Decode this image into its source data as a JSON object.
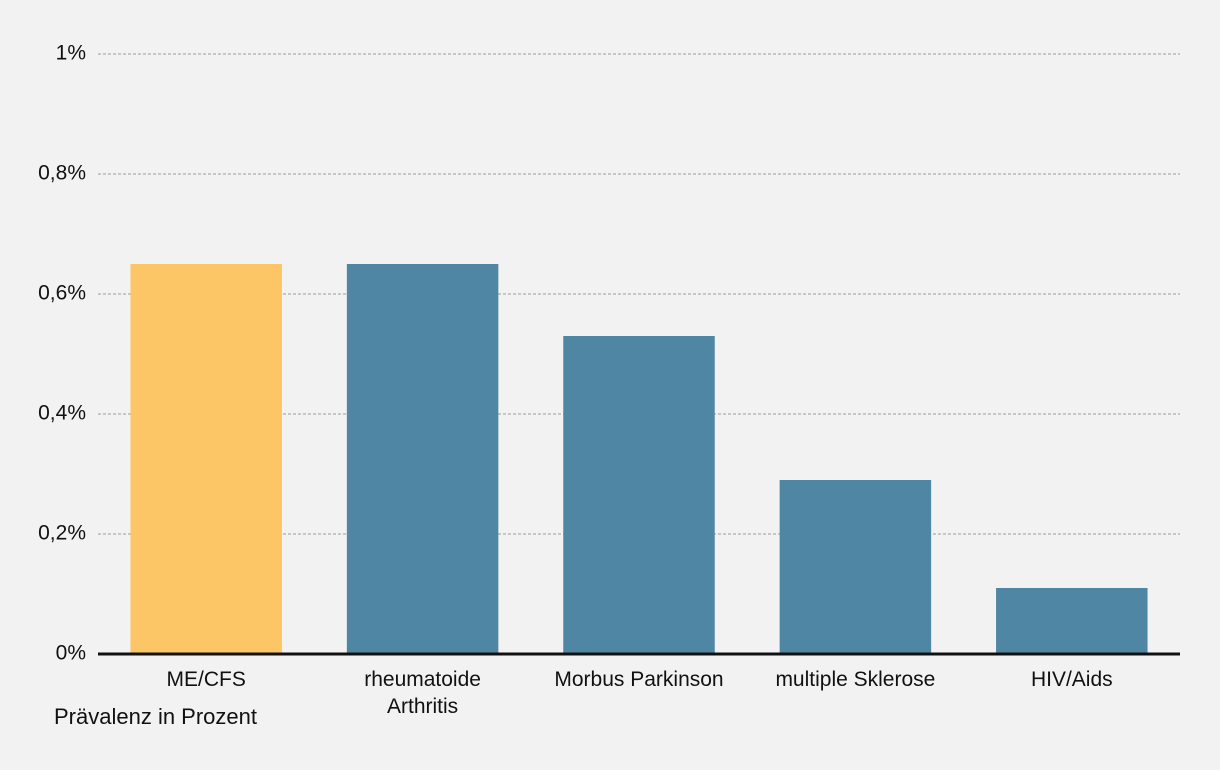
{
  "chart_data": {
    "type": "bar",
    "categories": [
      "ME/CFS",
      "rheumatoide\nArthritis",
      "Morbus Parkinson",
      "multiple Sklerose",
      "HIV/Aids"
    ],
    "values": [
      0.65,
      0.65,
      0.53,
      0.29,
      0.11
    ],
    "colors": [
      "#fcc566",
      "#4f86a3",
      "#4f86a3",
      "#4f86a3",
      "#4f86a3"
    ],
    "x_axis_label": "Prävalenz in Prozent",
    "ylim": [
      0,
      1
    ],
    "yticks": [
      {
        "value": 0,
        "label": "0%"
      },
      {
        "value": 0.2,
        "label": "0,2%"
      },
      {
        "value": 0.4,
        "label": "0,4%"
      },
      {
        "value": 0.6,
        "label": "0,6%"
      },
      {
        "value": 0.8,
        "label": "0,8%"
      },
      {
        "value": 1,
        "label": "1%"
      }
    ],
    "grid": true
  }
}
